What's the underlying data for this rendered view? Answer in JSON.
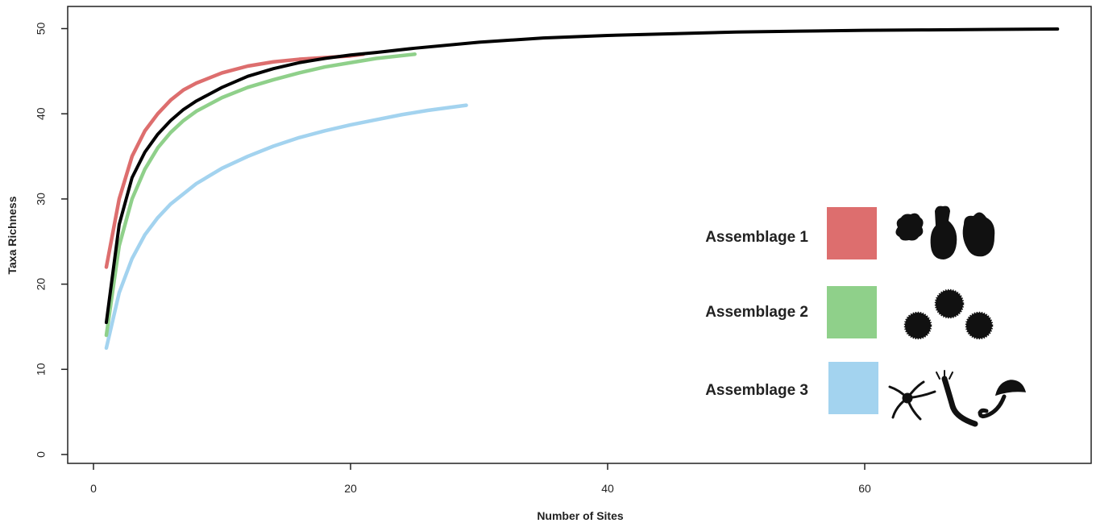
{
  "chart_data": {
    "type": "line",
    "xlabel": "Number of Sites",
    "ylabel": "Taxa Richness",
    "xlim": [
      0,
      75
    ],
    "ylim": [
      0,
      50
    ],
    "xticks": [
      0,
      20,
      40,
      60
    ],
    "yticks": [
      0,
      10,
      20,
      30,
      40,
      50
    ],
    "grid": false,
    "legend_position": "right",
    "series": [
      {
        "name": "Assemblage 1",
        "color": "#dd6e6e",
        "icon": "sponge-ascidian-silhouettes",
        "x": [
          1,
          2,
          3,
          4,
          5,
          6,
          7,
          8,
          10,
          12,
          14,
          16,
          18,
          20,
          21
        ],
        "y": [
          22,
          30,
          35,
          38,
          40,
          41.6,
          42.8,
          43.6,
          44.8,
          45.6,
          46.1,
          46.4,
          46.6,
          46.8,
          47
        ]
      },
      {
        "name": "Assemblage 2",
        "color": "#8fd08a",
        "icon": "sea-urchin-silhouettes",
        "x": [
          1,
          2,
          3,
          4,
          5,
          6,
          7,
          8,
          10,
          12,
          14,
          16,
          18,
          20,
          22,
          25
        ],
        "y": [
          14,
          24.5,
          30,
          33.5,
          36,
          37.8,
          39.2,
          40.3,
          41.9,
          43.1,
          44,
          44.8,
          45.5,
          46,
          46.5,
          47
        ]
      },
      {
        "name": "Assemblage 3",
        "color": "#a3d3ef",
        "icon": "brittle-star-tubeworm-silhouettes",
        "x": [
          1,
          2,
          3,
          4,
          5,
          6,
          8,
          10,
          12,
          14,
          16,
          18,
          20,
          22,
          24,
          26,
          29
        ],
        "y": [
          12.5,
          19,
          23,
          25.8,
          27.8,
          29.4,
          31.8,
          33.6,
          35,
          36.2,
          37.2,
          38,
          38.7,
          39.3,
          39.9,
          40.4,
          41
        ]
      },
      {
        "name": "",
        "color": "#000000",
        "x": [
          1,
          2,
          3,
          4,
          5,
          6,
          7,
          8,
          10,
          12,
          14,
          16,
          18,
          20,
          22,
          25,
          30,
          35,
          40,
          45,
          50,
          55,
          60,
          65,
          70,
          75
        ],
        "y": [
          15.5,
          27,
          32.5,
          35.5,
          37.6,
          39.2,
          40.5,
          41.5,
          43.1,
          44.4,
          45.3,
          46,
          46.5,
          46.9,
          47.2,
          47.7,
          48.4,
          48.9,
          49.2,
          49.4,
          49.6,
          49.7,
          49.8,
          49.85,
          49.9,
          49.95
        ]
      }
    ]
  }
}
